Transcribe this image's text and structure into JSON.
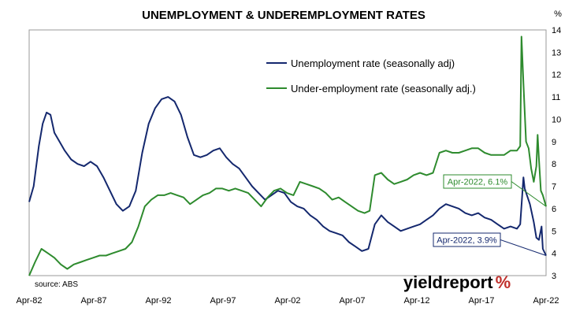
{
  "chart_data": {
    "type": "line",
    "title": "UNEMPLOYMENT & UNDEREMPLOYMENT RATES",
    "y_unit": "%",
    "ylim": [
      3,
      14
    ],
    "y_ticks": [
      "3",
      "4",
      "5",
      "6",
      "7",
      "8",
      "9",
      "10",
      "11",
      "12",
      "13",
      "14"
    ],
    "x_ticks": [
      "Apr-82",
      "Apr-87",
      "Apr-92",
      "Apr-97",
      "Apr-02",
      "Apr-07",
      "Apr-12",
      "Apr-17",
      "Apr-22"
    ],
    "xlim": [
      1982.25,
      2022.25
    ],
    "grid": false,
    "legend_position": "top-center",
    "series": [
      {
        "name": "Unemployment rate (seasonally adj)",
        "color": "#14286e",
        "points": [
          [
            1982.25,
            6.3
          ],
          [
            1982.6,
            7.0
          ],
          [
            1983.0,
            8.8
          ],
          [
            1983.3,
            9.8
          ],
          [
            1983.6,
            10.3
          ],
          [
            1983.9,
            10.2
          ],
          [
            1984.2,
            9.4
          ],
          [
            1984.6,
            9.0
          ],
          [
            1985.0,
            8.6
          ],
          [
            1985.5,
            8.2
          ],
          [
            1986.0,
            8.0
          ],
          [
            1986.5,
            7.9
          ],
          [
            1987.0,
            8.1
          ],
          [
            1987.5,
            7.9
          ],
          [
            1988.0,
            7.4
          ],
          [
            1988.5,
            6.8
          ],
          [
            1989.0,
            6.2
          ],
          [
            1989.5,
            5.9
          ],
          [
            1990.0,
            6.1
          ],
          [
            1990.5,
            6.8
          ],
          [
            1991.0,
            8.5
          ],
          [
            1991.5,
            9.8
          ],
          [
            1992.0,
            10.5
          ],
          [
            1992.5,
            10.9
          ],
          [
            1993.0,
            11.0
          ],
          [
            1993.5,
            10.8
          ],
          [
            1994.0,
            10.2
          ],
          [
            1994.5,
            9.2
          ],
          [
            1995.0,
            8.4
          ],
          [
            1995.5,
            8.3
          ],
          [
            1996.0,
            8.4
          ],
          [
            1996.5,
            8.6
          ],
          [
            1997.0,
            8.7
          ],
          [
            1997.5,
            8.3
          ],
          [
            1998.0,
            8.0
          ],
          [
            1998.5,
            7.8
          ],
          [
            1999.0,
            7.4
          ],
          [
            1999.5,
            7.0
          ],
          [
            2000.0,
            6.7
          ],
          [
            2000.5,
            6.4
          ],
          [
            2001.0,
            6.6
          ],
          [
            2001.5,
            6.8
          ],
          [
            2002.0,
            6.7
          ],
          [
            2002.5,
            6.3
          ],
          [
            2003.0,
            6.1
          ],
          [
            2003.5,
            6.0
          ],
          [
            2004.0,
            5.7
          ],
          [
            2004.5,
            5.5
          ],
          [
            2005.0,
            5.2
          ],
          [
            2005.5,
            5.0
          ],
          [
            2006.0,
            4.9
          ],
          [
            2006.5,
            4.8
          ],
          [
            2007.0,
            4.5
          ],
          [
            2007.5,
            4.3
          ],
          [
            2008.0,
            4.1
          ],
          [
            2008.5,
            4.2
          ],
          [
            2009.0,
            5.3
          ],
          [
            2009.5,
            5.7
          ],
          [
            2010.0,
            5.4
          ],
          [
            2010.5,
            5.2
          ],
          [
            2011.0,
            5.0
          ],
          [
            2011.5,
            5.1
          ],
          [
            2012.0,
            5.2
          ],
          [
            2012.5,
            5.3
          ],
          [
            2013.0,
            5.5
          ],
          [
            2013.5,
            5.7
          ],
          [
            2014.0,
            6.0
          ],
          [
            2014.5,
            6.2
          ],
          [
            2015.0,
            6.1
          ],
          [
            2015.5,
            6.0
          ],
          [
            2016.0,
            5.8
          ],
          [
            2016.5,
            5.7
          ],
          [
            2017.0,
            5.8
          ],
          [
            2017.5,
            5.6
          ],
          [
            2018.0,
            5.5
          ],
          [
            2018.5,
            5.3
          ],
          [
            2019.0,
            5.1
          ],
          [
            2019.5,
            5.2
          ],
          [
            2020.0,
            5.1
          ],
          [
            2020.25,
            5.3
          ],
          [
            2020.5,
            7.4
          ],
          [
            2020.6,
            6.9
          ],
          [
            2021.0,
            6.2
          ],
          [
            2021.3,
            5.4
          ],
          [
            2021.5,
            4.7
          ],
          [
            2021.7,
            4.6
          ],
          [
            2021.9,
            5.2
          ],
          [
            2022.0,
            4.2
          ],
          [
            2022.25,
            3.9
          ]
        ]
      },
      {
        "name": "Under-employment rate (seasonally adj.)",
        "color": "#2e8b2e",
        "points": [
          [
            1982.25,
            3.0
          ],
          [
            1982.7,
            3.6
          ],
          [
            1983.2,
            4.2
          ],
          [
            1983.7,
            4.0
          ],
          [
            1984.2,
            3.8
          ],
          [
            1984.7,
            3.5
          ],
          [
            1985.2,
            3.3
          ],
          [
            1985.7,
            3.5
          ],
          [
            1986.2,
            3.6
          ],
          [
            1986.7,
            3.7
          ],
          [
            1987.2,
            3.8
          ],
          [
            1987.7,
            3.9
          ],
          [
            1988.2,
            3.9
          ],
          [
            1988.7,
            4.0
          ],
          [
            1989.2,
            4.1
          ],
          [
            1989.7,
            4.2
          ],
          [
            1990.2,
            4.5
          ],
          [
            1990.7,
            5.2
          ],
          [
            1991.2,
            6.1
          ],
          [
            1991.7,
            6.4
          ],
          [
            1992.2,
            6.6
          ],
          [
            1992.7,
            6.6
          ],
          [
            1993.2,
            6.7
          ],
          [
            1993.7,
            6.6
          ],
          [
            1994.2,
            6.5
          ],
          [
            1994.7,
            6.2
          ],
          [
            1995.2,
            6.4
          ],
          [
            1995.7,
            6.6
          ],
          [
            1996.2,
            6.7
          ],
          [
            1996.7,
            6.9
          ],
          [
            1997.2,
            6.9
          ],
          [
            1997.7,
            6.8
          ],
          [
            1998.2,
            6.9
          ],
          [
            1998.7,
            6.8
          ],
          [
            1999.2,
            6.7
          ],
          [
            1999.7,
            6.4
          ],
          [
            2000.2,
            6.1
          ],
          [
            2000.7,
            6.5
          ],
          [
            2001.2,
            6.8
          ],
          [
            2001.7,
            6.9
          ],
          [
            2002.2,
            6.7
          ],
          [
            2002.7,
            6.6
          ],
          [
            2003.2,
            7.2
          ],
          [
            2003.7,
            7.1
          ],
          [
            2004.2,
            7.0
          ],
          [
            2004.7,
            6.9
          ],
          [
            2005.2,
            6.7
          ],
          [
            2005.7,
            6.4
          ],
          [
            2006.2,
            6.5
          ],
          [
            2006.7,
            6.3
          ],
          [
            2007.2,
            6.1
          ],
          [
            2007.7,
            5.9
          ],
          [
            2008.2,
            5.8
          ],
          [
            2008.6,
            5.9
          ],
          [
            2009.0,
            7.5
          ],
          [
            2009.5,
            7.6
          ],
          [
            2010.0,
            7.3
          ],
          [
            2010.5,
            7.1
          ],
          [
            2011.0,
            7.2
          ],
          [
            2011.5,
            7.3
          ],
          [
            2012.0,
            7.5
          ],
          [
            2012.5,
            7.6
          ],
          [
            2013.0,
            7.5
          ],
          [
            2013.5,
            7.6
          ],
          [
            2014.0,
            8.5
          ],
          [
            2014.5,
            8.6
          ],
          [
            2015.0,
            8.5
          ],
          [
            2015.5,
            8.5
          ],
          [
            2016.0,
            8.6
          ],
          [
            2016.5,
            8.7
          ],
          [
            2017.0,
            8.7
          ],
          [
            2017.5,
            8.5
          ],
          [
            2018.0,
            8.4
          ],
          [
            2018.5,
            8.4
          ],
          [
            2019.0,
            8.4
          ],
          [
            2019.5,
            8.6
          ],
          [
            2020.0,
            8.6
          ],
          [
            2020.25,
            8.8
          ],
          [
            2020.35,
            13.7
          ],
          [
            2020.5,
            11.6
          ],
          [
            2020.7,
            9.0
          ],
          [
            2020.9,
            8.7
          ],
          [
            2021.1,
            7.8
          ],
          [
            2021.3,
            7.2
          ],
          [
            2021.5,
            7.9
          ],
          [
            2021.6,
            9.3
          ],
          [
            2021.7,
            8.2
          ],
          [
            2021.85,
            6.8
          ],
          [
            2022.0,
            6.6
          ],
          [
            2022.25,
            6.1
          ]
        ]
      }
    ],
    "annotations": [
      {
        "text": "Apr-2022, 6.1%",
        "series": 1,
        "x": 2022.25,
        "y": 6.1
      },
      {
        "text": "Apr-2022, 3.9%",
        "series": 0,
        "x": 2022.25,
        "y": 3.9
      }
    ]
  },
  "source_label": "source: ABS",
  "brand": {
    "name": "yieldreport",
    "mark": "%"
  }
}
